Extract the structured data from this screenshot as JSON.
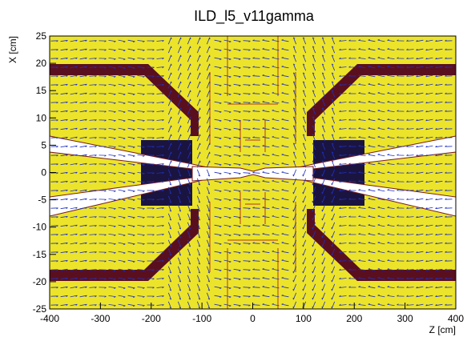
{
  "chart_data": {
    "type": "field",
    "title": "ILD_l5_v11gamma",
    "xlabel": "Z [cm]",
    "ylabel": "X [cm]",
    "xlim": [
      -400,
      400
    ],
    "ylim": [
      -25,
      25
    ],
    "xticks": [
      -400,
      -300,
      -200,
      -100,
      0,
      100,
      200,
      300,
      400
    ],
    "yticks": [
      -25,
      -20,
      -15,
      -10,
      -5,
      0,
      5,
      10,
      15,
      20,
      25
    ]
  }
}
